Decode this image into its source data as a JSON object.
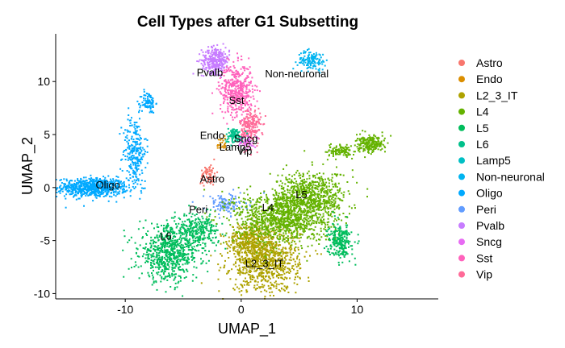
{
  "chart_data": {
    "type": "scatter",
    "title": "Cell Types after G1 Subsetting",
    "xlabel": "UMAP_1",
    "ylabel": "UMAP_2",
    "xlim": [
      -16,
      17
    ],
    "ylim": [
      -10.5,
      14.5
    ],
    "xticks": [
      -10,
      0,
      10
    ],
    "yticks": [
      -10,
      -5,
      0,
      5,
      10
    ],
    "grid": false,
    "legend_position": "right",
    "series": [
      {
        "name": "Astro",
        "color": "#F8766D"
      },
      {
        "name": "Endo",
        "color": "#DB8E00"
      },
      {
        "name": "L2_3_IT",
        "color": "#AEA200"
      },
      {
        "name": "L4",
        "color": "#64B200"
      },
      {
        "name": "L5",
        "color": "#00BD5C"
      },
      {
        "name": "L6",
        "color": "#00C1A7"
      },
      {
        "name": "Lamp5",
        "color": "#00BADE"
      },
      {
        "name": "Non-neuronal",
        "color": "#00A6FF"
      },
      {
        "name": "Oligo",
        "color": "#B385FF"
      },
      {
        "name": "Peri",
        "color": "#EF67EB"
      },
      {
        "name": "Pvalb",
        "color": "#FF63B6"
      },
      {
        "name": "Sncg",
        "color": "#FF5A8C"
      },
      {
        "name": "Sst",
        "color": "#E76BF3"
      },
      {
        "name": "Vip",
        "color": "#F8766D"
      }
    ],
    "legend_colors": [
      "#F8766D",
      "#DB8E00",
      "#AEA200",
      "#64B200",
      "#00BD5C",
      "#00C08B",
      "#00BFC4",
      "#00B4F0",
      "#00A9FF",
      "#619CFF",
      "#C77CFF",
      "#E76BF3",
      "#FF62BC",
      "#FF6A98"
    ],
    "cluster_labels": [
      {
        "text": "Pvalb",
        "x": -2.7,
        "y": 10.8
      },
      {
        "text": "Non-neuronal",
        "x": 4.8,
        "y": 10.7
      },
      {
        "text": "Sst",
        "x": -0.4,
        "y": 8.2
      },
      {
        "text": "Endo",
        "x": -2.5,
        "y": 4.9
      },
      {
        "text": "Sncg",
        "x": 0.4,
        "y": 4.6
      },
      {
        "text": "Lamp5",
        "x": -0.5,
        "y": 3.8
      },
      {
        "text": "Vip",
        "x": 0.3,
        "y": 3.4
      },
      {
        "text": "Astro",
        "x": -2.5,
        "y": 0.8
      },
      {
        "text": "Oligo",
        "x": -11.5,
        "y": 0.2
      },
      {
        "text": "Peri",
        "x": -3.7,
        "y": -2.1
      },
      {
        "text": "L5",
        "x": 5.2,
        "y": -0.7
      },
      {
        "text": "L4",
        "x": 2.3,
        "y": -1.9
      },
      {
        "text": "L6",
        "x": -6.5,
        "y": -4.6
      },
      {
        "text": "L2_3_IT",
        "x": 2.0,
        "y": -7.2
      }
    ],
    "clusters": [
      {
        "label": "Oligo",
        "color": "#00A9FF",
        "cx": -12.8,
        "cy": 0.0,
        "sx": 1.5,
        "sy": 0.45,
        "n": 700
      },
      {
        "label": "Oligo",
        "color": "#00A9FF",
        "cx": -9.2,
        "cy": 3.4,
        "sx": 0.5,
        "sy": 1.7,
        "n": 250
      },
      {
        "label": "Oligo",
        "color": "#00A9FF",
        "cx": -8.0,
        "cy": 8.0,
        "sx": 0.3,
        "sy": 0.5,
        "n": 90
      },
      {
        "label": "Pvalb",
        "color": "#C77CFF",
        "cx": -2.2,
        "cy": 12.0,
        "sx": 0.6,
        "sy": 0.6,
        "n": 300
      },
      {
        "label": "Sst",
        "color": "#FF62BC",
        "cx": -0.4,
        "cy": 9.2,
        "sx": 0.7,
        "sy": 1.2,
        "n": 450
      },
      {
        "label": "Vip",
        "color": "#FF6A98",
        "cx": 0.8,
        "cy": 5.7,
        "sx": 0.45,
        "sy": 0.9,
        "n": 220
      },
      {
        "label": "Lamp5",
        "color": "#00C08B",
        "cx": -0.6,
        "cy": 4.9,
        "sx": 0.4,
        "sy": 0.35,
        "n": 90
      },
      {
        "label": "Non-neuronal",
        "color": "#00B4F0",
        "cx": 6.1,
        "cy": 12.0,
        "sx": 0.6,
        "sy": 0.45,
        "n": 130
      },
      {
        "label": "Astro",
        "color": "#F8766D",
        "cx": -2.8,
        "cy": 1.2,
        "sx": 0.35,
        "sy": 0.5,
        "n": 70
      },
      {
        "label": "Peri",
        "color": "#619CFF",
        "cx": -1.3,
        "cy": -1.6,
        "sx": 0.9,
        "sy": 0.5,
        "n": 120
      },
      {
        "label": "L6",
        "color": "#00BD5C",
        "cx": -6.2,
        "cy": -6.2,
        "sx": 1.3,
        "sy": 1.3,
        "n": 700
      },
      {
        "label": "L6",
        "color": "#00BD5C",
        "cx": -3.7,
        "cy": -4.1,
        "sx": 0.9,
        "sy": 0.8,
        "n": 260
      },
      {
        "label": "L2_3_IT",
        "color": "#AEA200",
        "cx": 2.0,
        "cy": -6.8,
        "sx": 1.5,
        "sy": 1.5,
        "n": 950
      },
      {
        "label": "L2_3_IT",
        "color": "#AEA200",
        "cx": 0.6,
        "cy": -4.8,
        "sx": 0.8,
        "sy": 0.7,
        "n": 250
      },
      {
        "label": "L4",
        "color": "#64B200",
        "cx": 3.6,
        "cy": -2.8,
        "sx": 2.1,
        "sy": 1.2,
        "n": 1100
      },
      {
        "label": "L4",
        "color": "#64B200",
        "cx": 6.1,
        "cy": -0.7,
        "sx": 1.5,
        "sy": 1.1,
        "n": 600
      },
      {
        "label": "L5",
        "color": "#00BD5C",
        "cx": 8.5,
        "cy": -5.0,
        "sx": 0.5,
        "sy": 0.8,
        "n": 250
      },
      {
        "label": "L5",
        "color": "#64B200",
        "cx": 11.2,
        "cy": 4.1,
        "sx": 0.6,
        "sy": 0.4,
        "n": 220
      },
      {
        "label": "L5",
        "color": "#64B200",
        "cx": 8.6,
        "cy": 3.4,
        "sx": 0.6,
        "sy": 0.3,
        "n": 110
      },
      {
        "label": "Sncg",
        "color": "#E76BF3",
        "cx": 0.5,
        "cy": 4.3,
        "sx": 0.3,
        "sy": 0.3,
        "n": 40
      },
      {
        "label": "Endo",
        "color": "#DB8E00",
        "cx": -1.6,
        "cy": 4.2,
        "sx": 0.25,
        "sy": 0.3,
        "n": 25
      }
    ]
  }
}
